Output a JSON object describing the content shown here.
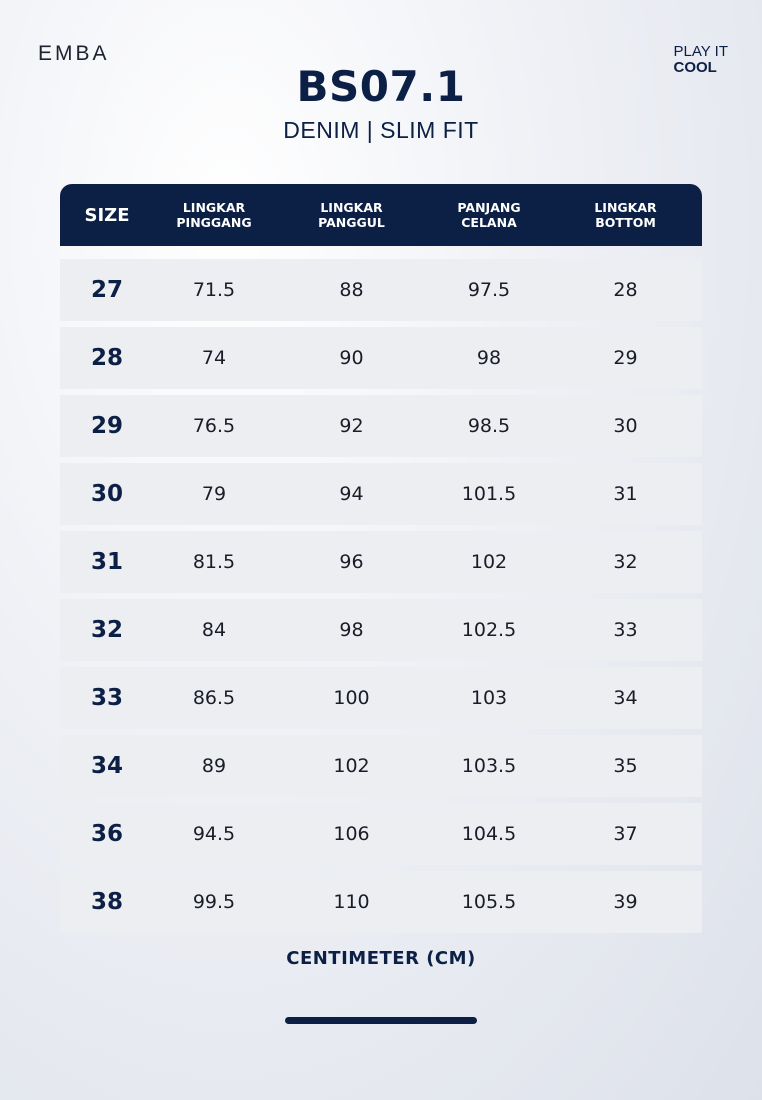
{
  "brand": "EMBA",
  "tagline": {
    "line1": "PLAY IT",
    "line2": "COOL"
  },
  "title": "BS07.1",
  "subtitle": "DENIM | SLIM FIT",
  "table": {
    "headers": [
      {
        "line1": "SIZE",
        "line2": ""
      },
      {
        "line1": "LINGKAR",
        "line2": "PINGGANG"
      },
      {
        "line1": "LINGKAR",
        "line2": "PANGGUL"
      },
      {
        "line1": "PANJANG",
        "line2": "CELANA"
      },
      {
        "line1": "LINGKAR",
        "line2": "BOTTOM"
      }
    ],
    "rows": [
      [
        "27",
        "71.5",
        "88",
        "97.5",
        "28"
      ],
      [
        "28",
        "74",
        "90",
        "98",
        "29"
      ],
      [
        "29",
        "76.5",
        "92",
        "98.5",
        "30"
      ],
      [
        "30",
        "79",
        "94",
        "101.5",
        "31"
      ],
      [
        "31",
        "81.5",
        "96",
        "102",
        "32"
      ],
      [
        "32",
        "84",
        "98",
        "102.5",
        "33"
      ],
      [
        "33",
        "86.5",
        "100",
        "103",
        "34"
      ],
      [
        "34",
        "89",
        "102",
        "103.5",
        "35"
      ],
      [
        "36",
        "94.5",
        "106",
        "104.5",
        "37"
      ],
      [
        "38",
        "99.5",
        "110",
        "105.5",
        "39"
      ]
    ]
  },
  "unit_label": "CENTIMETER (CM)",
  "colors": {
    "navy": "#0c1f45",
    "row_bg": "#eceef2"
  }
}
